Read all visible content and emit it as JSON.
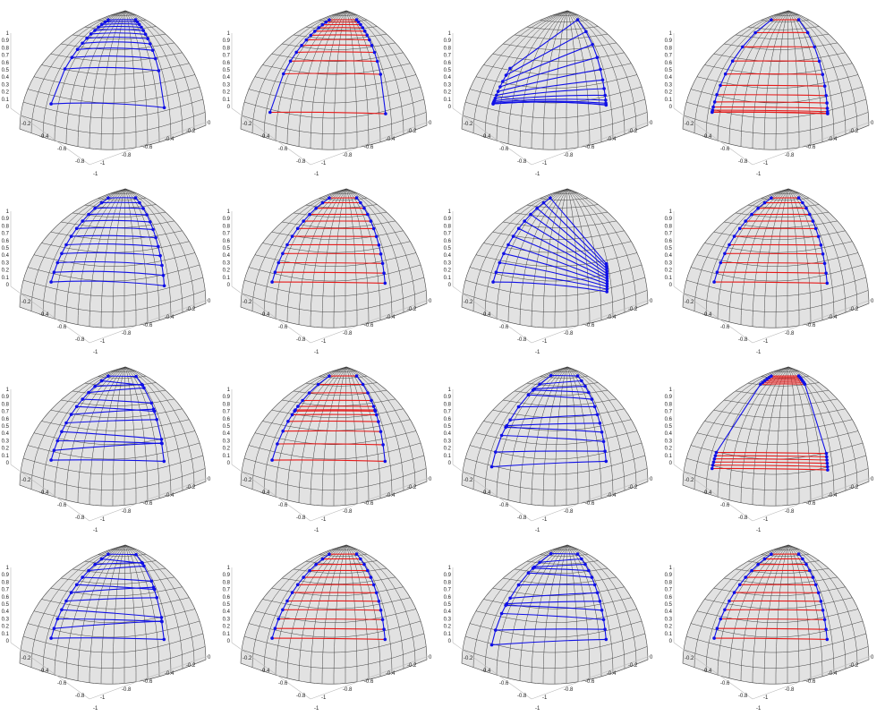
{
  "figure": {
    "rows": 4,
    "cols": 4,
    "description_colors": {
      "blue": "#1010e6",
      "red": "#e61a1a",
      "sphere": "#e2e2e2",
      "grid": "#444444"
    }
  },
  "axes_ticks": {
    "z": [
      "0",
      "0.1",
      "0.2",
      "0.3",
      "0.4",
      "0.5",
      "0.6",
      "0.7",
      "0.8",
      "0.9",
      "1"
    ],
    "left": [
      "-0.2",
      "-0.4",
      "-0.6",
      "-0.8",
      "-1"
    ],
    "right": [
      "-1",
      "-0.8",
      "-0.6",
      "-0.4",
      "-0.2",
      "0"
    ]
  },
  "chart_data": [
    {
      "type": "scatter",
      "row": 0,
      "col": 0,
      "color": "blue",
      "dist": "fan",
      "n": 12,
      "bulge": 0.9,
      "z_range": [
        0.2,
        0.85
      ]
    },
    {
      "type": "scatter",
      "row": 0,
      "col": 1,
      "color": "red",
      "dist": "topdense",
      "n": 12,
      "bulge": 0.25,
      "z_range": [
        0.15,
        0.85
      ]
    },
    {
      "type": "scatter",
      "row": 0,
      "col": 2,
      "color": "blue",
      "dist": "fanlow",
      "n": 12,
      "bulge": 0.9,
      "z_range": [
        0.2,
        0.85
      ]
    },
    {
      "type": "scatter",
      "row": 0,
      "col": 3,
      "color": "red",
      "dist": "bottomdense",
      "n": 12,
      "bulge": 0.25,
      "z_range": [
        0.15,
        0.85
      ]
    },
    {
      "type": "scatter",
      "row": 1,
      "col": 0,
      "color": "blue",
      "dist": "fan2",
      "n": 12,
      "bulge": 0.9,
      "z_range": [
        0.2,
        0.85
      ]
    },
    {
      "type": "scatter",
      "row": 1,
      "col": 1,
      "color": "red",
      "dist": "uniform",
      "n": 12,
      "bulge": 0.1,
      "z_range": [
        0.2,
        0.85
      ]
    },
    {
      "type": "scatter",
      "row": 1,
      "col": 2,
      "color": "blue",
      "dist": "fanright",
      "n": 12,
      "bulge": 0.9,
      "z_range": [
        0.2,
        0.85
      ]
    },
    {
      "type": "scatter",
      "row": 1,
      "col": 3,
      "color": "red",
      "dist": "uniform",
      "n": 12,
      "bulge": 0.1,
      "z_range": [
        0.2,
        0.85
      ]
    },
    {
      "type": "scatter",
      "row": 2,
      "col": 0,
      "color": "blue",
      "dist": "mixed",
      "n": 12,
      "bulge": 0.25,
      "z_range": [
        0.2,
        0.85
      ]
    },
    {
      "type": "scatter",
      "row": 2,
      "col": 1,
      "color": "red",
      "dist": "middense",
      "n": 12,
      "bulge": 0.2,
      "z_range": [
        0.2,
        0.85
      ]
    },
    {
      "type": "scatter",
      "row": 2,
      "col": 2,
      "color": "blue",
      "dist": "mixed2",
      "n": 12,
      "bulge": 0.25,
      "z_range": [
        0.2,
        0.85
      ]
    },
    {
      "type": "scatter",
      "row": 2,
      "col": 3,
      "color": "red",
      "dist": "twoclusters",
      "n": 12,
      "bulge": 0.2,
      "z_range": [
        0.15,
        0.85
      ]
    },
    {
      "type": "scatter",
      "row": 3,
      "col": 0,
      "color": "blue",
      "dist": "mixed3",
      "n": 12,
      "bulge": 0.3,
      "z_range": [
        0.2,
        0.85
      ]
    },
    {
      "type": "scatter",
      "row": 3,
      "col": 1,
      "color": "red",
      "dist": "uniform",
      "n": 12,
      "bulge": 0.1,
      "z_range": [
        0.2,
        0.85
      ]
    },
    {
      "type": "scatter",
      "row": 3,
      "col": 2,
      "color": "blue",
      "dist": "mixed4",
      "n": 12,
      "bulge": 0.3,
      "z_range": [
        0.2,
        0.85
      ]
    },
    {
      "type": "scatter",
      "row": 3,
      "col": 3,
      "color": "red",
      "dist": "uniform",
      "n": 12,
      "bulge": 0.1,
      "z_range": [
        0.2,
        0.85
      ]
    }
  ]
}
